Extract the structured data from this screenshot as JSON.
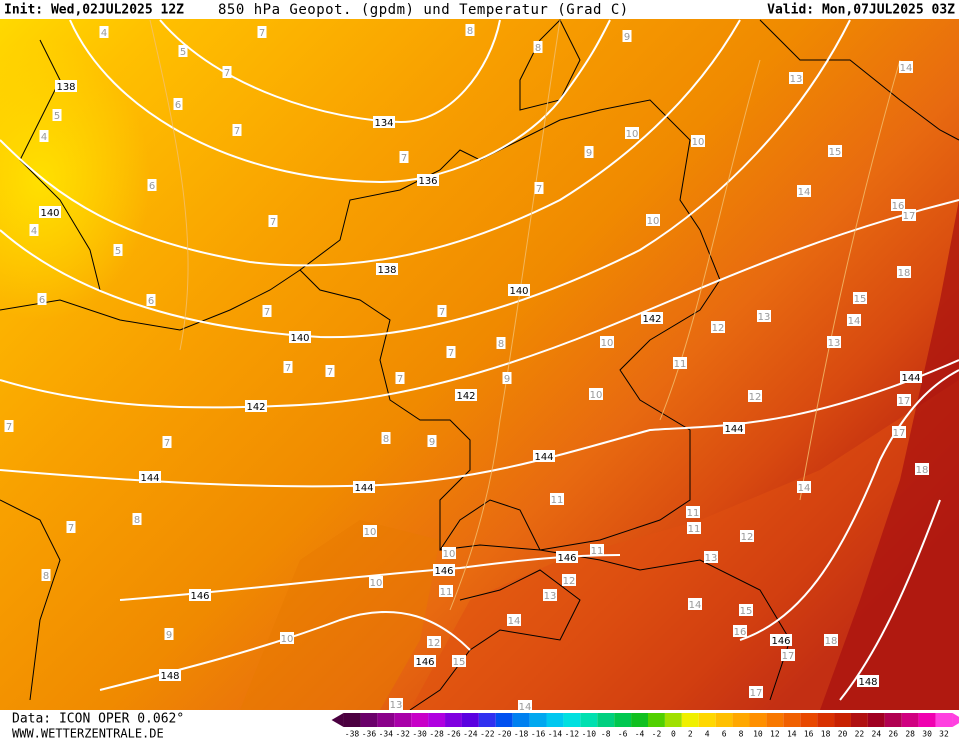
{
  "header": {
    "init": "Init: Wed,02JUL2025 12Z",
    "title": "850 hPa Geopot. (gpdm) und Temperatur (Grad C)",
    "valid": "Valid: Mon,07JUL2025 03Z"
  },
  "footer": {
    "data": "Data: ICON OPER 0.062°",
    "site": "WWW.WETTERZENTRALE.DE"
  },
  "colorbar": {
    "labels": [
      -38,
      -36,
      -34,
      -32,
      -30,
      -28,
      -26,
      -24,
      -22,
      -20,
      -18,
      -16,
      -14,
      -12,
      -10,
      -8,
      -6,
      -4,
      -2,
      0,
      2,
      4,
      6,
      8,
      10,
      12,
      14,
      16,
      18,
      20,
      22,
      24,
      26,
      28,
      30,
      32
    ],
    "colors": [
      "#4b0040",
      "#6a006a",
      "#8a008a",
      "#a800a8",
      "#c800c8",
      "#b000e0",
      "#8000e0",
      "#5a00e0",
      "#3030f0",
      "#0050f0",
      "#0080f0",
      "#00a8f0",
      "#00c8f0",
      "#00e0e0",
      "#00e0b0",
      "#00d080",
      "#00c850",
      "#10c020",
      "#50d000",
      "#a0e000",
      "#f0f000",
      "#ffd800",
      "#ffc000",
      "#ffa800",
      "#ff9000",
      "#f87800",
      "#f06000",
      "#e84800",
      "#d83000",
      "#c82000",
      "#b01010",
      "#a00020",
      "#b00050",
      "#d00080",
      "#f000b0",
      "#ff40e0"
    ]
  },
  "geopotential_labels": [
    138,
    134,
    136,
    140,
    138,
    140,
    142,
    140,
    142,
    142,
    144,
    144,
    144,
    144,
    144,
    146,
    146,
    146,
    146,
    146,
    148,
    148
  ],
  "temperature_labels": [
    4,
    5,
    7,
    8,
    8,
    9,
    7,
    5,
    6,
    4,
    7,
    7,
    6,
    4,
    5,
    7,
    6,
    6,
    7,
    7,
    7,
    8,
    7,
    7,
    7,
    9,
    7,
    7,
    8,
    9,
    7,
    8,
    8,
    9,
    10,
    10,
    9,
    7,
    10,
    10,
    10,
    11,
    12,
    13,
    14,
    15,
    14,
    16,
    17,
    18,
    15,
    14,
    13,
    13,
    12,
    17,
    17,
    18,
    14,
    11,
    11,
    11,
    12,
    13,
    11,
    10,
    10,
    10,
    10,
    11,
    12,
    13,
    14,
    12,
    15,
    14,
    15,
    16,
    17,
    18,
    17,
    13,
    14
  ]
}
